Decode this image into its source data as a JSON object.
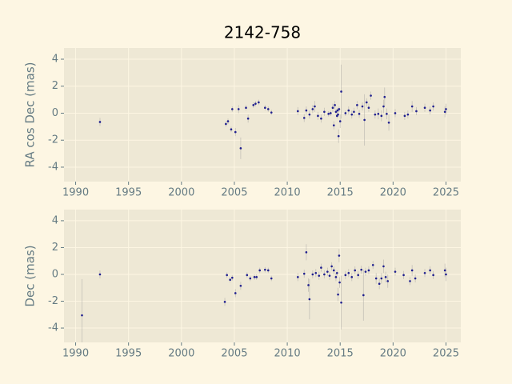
{
  "chart_data": [
    {
      "type": "scatter",
      "title": "2142-758",
      "ylabel": "RA cos Dec (mas)",
      "color": "#1f1f8f",
      "grid": true,
      "xlim": [
        1988.9,
        2026.4
      ],
      "ylim": [
        -5.07,
        4.83
      ],
      "xticks": [
        1990,
        1995,
        2000,
        2005,
        2010,
        2015,
        2020,
        2025
      ],
      "yticks": [
        -4,
        -2,
        0,
        2,
        4
      ],
      "x": [
        1992.3,
        2004.2,
        2004.4,
        2004.7,
        2004.8,
        2005.1,
        2005.4,
        2005.6,
        2006.1,
        2006.3,
        2006.8,
        2007.0,
        2007.3,
        2007.9,
        2008.2,
        2008.5,
        2011.0,
        2011.6,
        2011.8,
        2012.1,
        2012.4,
        2012.6,
        2012.9,
        2013.2,
        2013.5,
        2013.9,
        2014.1,
        2014.3,
        2014.4,
        2014.5,
        2014.6,
        2014.7,
        2014.75,
        2014.8,
        2014.85,
        2014.9,
        2015.0,
        2015.1,
        2015.5,
        2015.8,
        2016.1,
        2016.3,
        2016.6,
        2016.8,
        2017.1,
        2017.3,
        2017.5,
        2017.7,
        2017.9,
        2018.3,
        2018.6,
        2018.9,
        2019.1,
        2019.2,
        2019.4,
        2019.6,
        2020.2,
        2021.1,
        2021.4,
        2021.8,
        2022.2,
        2023.0,
        2023.5,
        2023.8,
        2024.9,
        2025.0
      ],
      "values": [
        -0.65,
        -0.8,
        -0.6,
        -1.2,
        0.3,
        -1.4,
        0.3,
        -2.6,
        0.4,
        -0.4,
        0.6,
        0.7,
        0.8,
        0.4,
        0.3,
        0.05,
        0.15,
        -0.35,
        0.2,
        -0.1,
        0.3,
        0.5,
        -0.2,
        -0.4,
        0.1,
        -0.05,
        0.0,
        0.4,
        -0.9,
        0.6,
        0.1,
        -0.2,
        0.2,
        -0.1,
        -1.7,
        0.3,
        -0.6,
        1.6,
        0.0,
        0.2,
        -0.1,
        0.1,
        0.6,
        -0.05,
        0.5,
        -0.5,
        0.8,
        0.4,
        1.3,
        -0.1,
        -0.05,
        -0.2,
        0.5,
        1.2,
        -0.05,
        -0.7,
        0.0,
        -0.2,
        -0.1,
        0.5,
        0.15,
        0.4,
        0.2,
        0.5,
        0.1,
        0.3
      ],
      "errors": [
        0.3,
        0.2,
        0.2,
        0.2,
        0.2,
        0.3,
        0.3,
        0.8,
        0.2,
        0.3,
        0.2,
        0.2,
        0.2,
        0.2,
        0.2,
        0.2,
        0.3,
        0.3,
        0.3,
        0.3,
        0.3,
        0.4,
        0.3,
        0.3,
        0.3,
        0.2,
        0.2,
        0.3,
        0.3,
        0.3,
        0.2,
        0.2,
        0.2,
        0.2,
        0.5,
        0.2,
        0.5,
        2.0,
        0.2,
        0.3,
        0.3,
        0.3,
        0.3,
        0.3,
        0.3,
        1.9,
        0.3,
        0.3,
        0.3,
        0.3,
        0.4,
        0.4,
        0.5,
        0.7,
        0.4,
        0.6,
        0.3,
        0.3,
        0.3,
        0.4,
        0.3,
        0.3,
        0.3,
        0.3,
        0.4,
        0.4
      ]
    },
    {
      "type": "scatter",
      "ylabel": "Dec (mas)",
      "color": "#1f1f8f",
      "grid": true,
      "xlim": [
        1988.9,
        2026.4
      ],
      "ylim": [
        -5.07,
        4.83
      ],
      "xticks": [
        1990,
        1995,
        2000,
        2005,
        2010,
        2015,
        2020,
        2025
      ],
      "yticks": [
        -4,
        -2,
        0,
        2,
        4
      ],
      "x": [
        1990.6,
        1992.3,
        2004.1,
        2004.3,
        2004.6,
        2004.8,
        2005.1,
        2005.6,
        2006.2,
        2006.5,
        2006.9,
        2007.1,
        2007.4,
        2007.9,
        2008.2,
        2008.5,
        2011.0,
        2011.6,
        2011.8,
        2012.0,
        2012.1,
        2012.4,
        2012.7,
        2013.0,
        2013.2,
        2013.5,
        2013.8,
        2014.0,
        2014.2,
        2014.4,
        2014.6,
        2014.7,
        2014.8,
        2014.9,
        2014.95,
        2015.1,
        2015.5,
        2015.8,
        2016.1,
        2016.4,
        2016.7,
        2017.0,
        2017.2,
        2017.4,
        2017.7,
        2018.1,
        2018.4,
        2018.7,
        2018.9,
        2019.1,
        2019.3,
        2019.5,
        2020.2,
        2021.0,
        2021.6,
        2021.8,
        2022.1,
        2023.0,
        2023.5,
        2023.8,
        2024.9,
        2025.0
      ],
      "values": [
        -3.05,
        0.0,
        -2.05,
        -0.05,
        -0.4,
        -0.25,
        -1.4,
        -0.85,
        -0.05,
        -0.3,
        -0.2,
        -0.2,
        0.3,
        0.35,
        0.3,
        -0.3,
        -0.2,
        0.05,
        1.65,
        -0.8,
        -1.85,
        0.0,
        0.1,
        -0.1,
        0.5,
        0.0,
        0.2,
        -0.1,
        0.6,
        0.3,
        -0.2,
        0.1,
        -1.5,
        1.4,
        -0.6,
        -2.1,
        -0.05,
        0.1,
        -0.2,
        0.3,
        -0.05,
        0.35,
        -1.55,
        0.2,
        0.3,
        0.7,
        -0.3,
        -0.7,
        -0.3,
        0.6,
        -0.2,
        -0.5,
        0.2,
        -0.05,
        -0.5,
        0.3,
        -0.3,
        0.1,
        0.3,
        -0.05,
        0.3,
        0.0
      ],
      "errors": [
        2.7,
        0.3,
        0.3,
        0.2,
        0.2,
        0.2,
        0.3,
        0.3,
        0.2,
        0.2,
        0.2,
        0.2,
        0.2,
        0.2,
        0.2,
        0.2,
        0.3,
        0.3,
        0.6,
        0.5,
        1.5,
        0.3,
        0.3,
        0.3,
        0.3,
        0.3,
        0.3,
        0.3,
        0.3,
        0.3,
        0.3,
        0.2,
        0.5,
        0.5,
        0.4,
        2.0,
        0.3,
        0.3,
        0.3,
        0.3,
        0.3,
        0.3,
        1.9,
        0.3,
        0.3,
        0.3,
        0.4,
        0.4,
        0.4,
        0.5,
        0.4,
        0.5,
        0.3,
        0.3,
        0.3,
        0.4,
        0.3,
        0.3,
        0.3,
        0.3,
        0.5,
        0.5
      ]
    }
  ]
}
